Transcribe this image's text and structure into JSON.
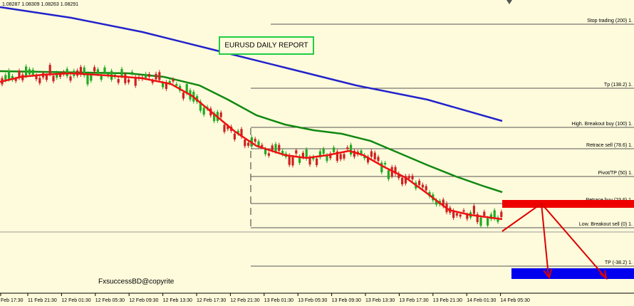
{
  "header": {
    "ohlc": "1.08287 1.08309 1.08263 1.08291"
  },
  "title": "EURUSD DAILY REPORT",
  "watermark": "FxsuccessBD@copyrite",
  "levels": [
    "Stop trading (200)  1.",
    "Tp (138.2)  1.",
    "High. Breakout buy (100)  1.",
    "Retrace sell (78.6)  1.",
    "Pivot/TP (50)  1.",
    "Retrace buy (23.6)  1.",
    "Low. Breakout sell (0)  1.",
    "TP (-38.2)  1."
  ],
  "x_labels": [
    "Feb 17:30",
    "11 Feb 21:30",
    "12 Feb 01:30",
    "12 Feb 05:30",
    "12 Feb 09:30",
    "12 Feb 13:30",
    "12 Feb 17:30",
    "12 Feb 21:30",
    "13 Feb 01:30",
    "13 Feb 05:30",
    "13 Feb 09:30",
    "13 Feb 13:30",
    "13 Feb 17:30",
    "13 Feb 21:30",
    "14 Feb 01:30",
    "14 Feb 05:30"
  ]
}
